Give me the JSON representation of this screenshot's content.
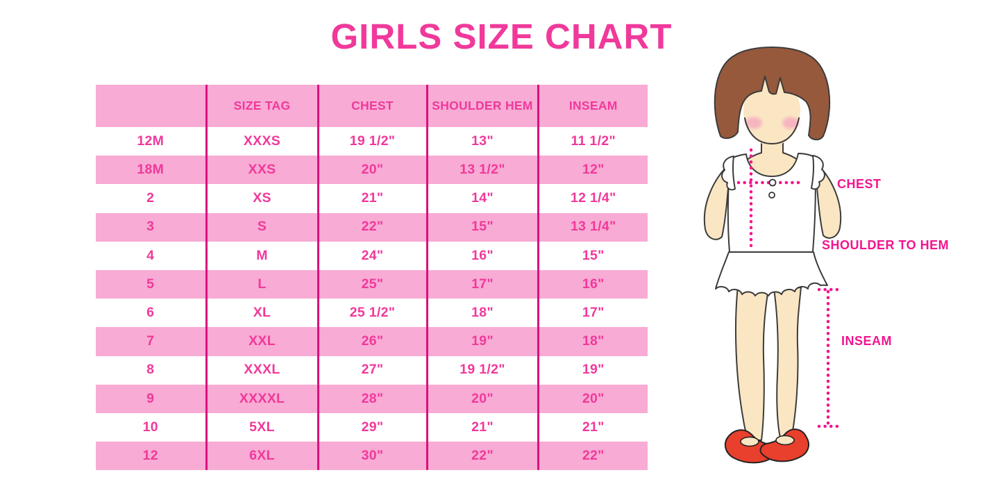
{
  "title": "GIRLS SIZE CHART",
  "colors": {
    "pink_bg": "#F8ABD4",
    "magenta": "#F0399B",
    "divider": "#D9117E",
    "measure_line": "#F2148E",
    "hair": "#96593C",
    "skin": "#FBE6C3",
    "blush": "#F5A8C0",
    "shoe": "#E8402C",
    "outline": "#3B3B3B"
  },
  "table": {
    "headers": [
      "",
      "SIZE TAG",
      "CHEST",
      "SHOULDER HEM",
      "INSEAM"
    ],
    "rows": [
      [
        "12M",
        "XXXS",
        "19 1/2\"",
        "13\"",
        "11 1/2\""
      ],
      [
        "18M",
        "XXS",
        "20\"",
        "13 1/2\"",
        "12\""
      ],
      [
        "2",
        "XS",
        "21\"",
        "14\"",
        "12 1/4\""
      ],
      [
        "3",
        "S",
        "22\"",
        "15\"",
        "13 1/4\""
      ],
      [
        "4",
        "M",
        "24\"",
        "16\"",
        "15\""
      ],
      [
        "5",
        "L",
        "25\"",
        "17\"",
        "16\""
      ],
      [
        "6",
        "XL",
        "25 1/2\"",
        "18\"",
        "17\""
      ],
      [
        "7",
        "XXL",
        "26\"",
        "19\"",
        "18\""
      ],
      [
        "8",
        "XXXL",
        "27\"",
        "19 1/2\"",
        "19\""
      ],
      [
        "9",
        "XXXXL",
        "28\"",
        "20\"",
        "20\""
      ],
      [
        "10",
        "5XL",
        "29\"",
        "21\"",
        "21\""
      ],
      [
        "12",
        "6XL",
        "30\"",
        "22\"",
        "22\""
      ]
    ]
  },
  "figure": {
    "labels": {
      "chest": "CHEST",
      "shoulder_to_hem": "SHOULDER TO HEM",
      "inseam": "INSEAM"
    }
  }
}
